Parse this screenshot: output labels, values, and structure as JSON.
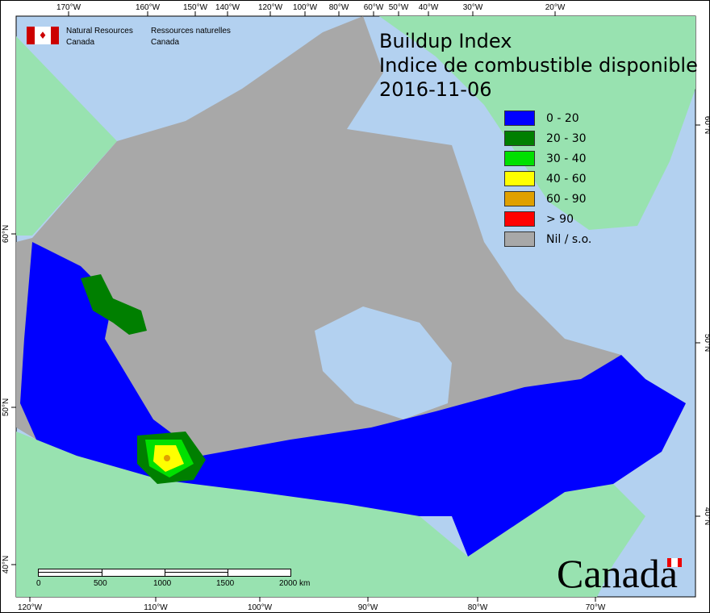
{
  "title": {
    "line1": "Buildup Index",
    "line2": "Indice de combustible disponible",
    "date": "2016-11-06"
  },
  "agency": {
    "en_line1": "Natural Resources",
    "en_line2": "Canada",
    "fr_line1": "Ressources naturelles",
    "fr_line2": "Canada",
    "wordmark": "Canada"
  },
  "legend": [
    {
      "label": "0 - 20",
      "color": "#0000ff"
    },
    {
      "label": "20 - 30",
      "color": "#007f00"
    },
    {
      "label": "30 - 40",
      "color": "#00e000"
    },
    {
      "label": "40 - 60",
      "color": "#ffff00"
    },
    {
      "label": "60 - 90",
      "color": "#e0a000"
    },
    {
      "label": "> 90",
      "color": "#ff0000"
    },
    {
      "label": "Nil / s.o.",
      "color": "#a8a8a8"
    }
  ],
  "top_ticks": [
    "170°W",
    "160°W",
    "150°W",
    "140°W",
    "120°W",
    "100°W",
    "80°W",
    "60°W",
    "50°W",
    "40°W",
    "30°W",
    "20°W"
  ],
  "bottom_ticks": [
    "120°W",
    "110°W",
    "100°W",
    "90°W",
    "80°W",
    "70°W"
  ],
  "left_ticks": [
    "60°N",
    "50°N",
    "40°N"
  ],
  "right_ticks": [
    "60°N",
    "50°N",
    "40°N"
  ],
  "scale": {
    "labels": [
      "0",
      "500",
      "1000",
      "1500",
      "2000 km"
    ]
  },
  "colors": {
    "ocean": "#b3d1f0",
    "foreign_land": "#98e2b0",
    "no_data": "#a8a8a8",
    "low": "#0000ff"
  }
}
